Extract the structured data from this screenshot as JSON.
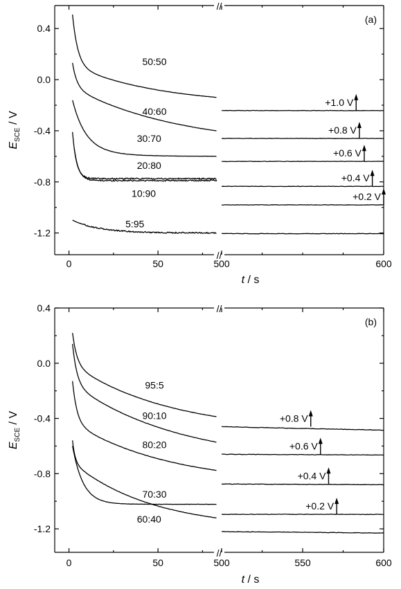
{
  "chart_data": [
    {
      "type": "line",
      "panel_label": "(a)",
      "ylabel_main": "E",
      "ylabel_sub": "SCE",
      "ylabel_unit": " / V",
      "xlabel_main": "t",
      "xlabel_unit": " / s",
      "break_mark": "//",
      "xlim_left": [
        -8,
        83
      ],
      "xlim_right": [
        500,
        600
      ],
      "ylim": [
        -1.37,
        0.58
      ],
      "yticks": [
        0.4,
        0.0,
        -0.4,
        -0.8,
        -1.2
      ],
      "ytick_labels": [
        "0.4",
        "0.0",
        "-0.4",
        "-0.8",
        "-1.2"
      ],
      "xticks_left": [
        0,
        50
      ],
      "xticks_left_labels": [
        "0",
        "50"
      ],
      "xticks_right": [
        500,
        600
      ],
      "xticks_right_labels": [
        "500",
        "600"
      ],
      "series": [
        {
          "name": "50:50",
          "label_x": 48,
          "label_y": 0.14,
          "left": {
            "t0": 2,
            "E0": 0.51,
            "Einf": -0.2,
            "A": 0.71,
            "B": 0.31,
            "tau": 3,
            "tau2": 50
          },
          "right": [
            [
              500,
              -0.242
            ],
            [
              600,
              -0.242
            ]
          ]
        },
        {
          "name": "40:60",
          "label_x": 48,
          "label_y": -0.25,
          "left": {
            "t0": 2,
            "E0": 0.13,
            "Einf": -0.52,
            "A": 0.65,
            "B": 0.46,
            "tau": 2.5,
            "tau2": 60
          },
          "right": [
            [
              500,
              -0.46
            ],
            [
              600,
              -0.46
            ]
          ]
        },
        {
          "name": "30:70",
          "label_x": 45,
          "label_y": -0.46,
          "left": {
            "t0": 2,
            "E0": -0.16,
            "Einf": -0.6,
            "A": 0.44,
            "B": 0.1,
            "tau": 7,
            "tau2": 15
          },
          "right": [
            [
              500,
              -0.64
            ],
            [
              600,
              -0.64
            ]
          ]
        },
        {
          "name": "20:80",
          "label_x": 45,
          "label_y": -0.67,
          "left": {
            "t0": 2,
            "E0": -0.41,
            "Einf": -0.775,
            "A": 0.365,
            "B": 0.0,
            "tau": 2.2,
            "tau2": 10
          },
          "right": [
            [
              500,
              -0.835
            ],
            [
              600,
              -0.835
            ]
          ]
        },
        {
          "name": "10:90",
          "label_x": 42,
          "label_y": -0.89,
          "left": {
            "t0": 3,
            "E0": -0.54,
            "Einf": -0.79,
            "A": 0.25,
            "B": 0.0,
            "tau": 2.5,
            "tau2": 10
          },
          "right": [
            [
              500,
              -0.98
            ],
            [
              600,
              -0.98
            ]
          ]
        },
        {
          "name": "5:95",
          "label_x": 37,
          "label_y": -1.13,
          "left": {
            "t0": 2,
            "E0": -1.0,
            "Einf": -1.2,
            "A": 0.1,
            "B": 0.1,
            "tau": 2,
            "tau2": 15
          },
          "right": [
            [
              500,
              -1.205
            ],
            [
              600,
              -1.205
            ]
          ]
        }
      ],
      "annotations": [
        {
          "label": "+1.0 V",
          "x": 583,
          "y": -0.242
        },
        {
          "label": "+0.8 V",
          "x": 585,
          "y": -0.46
        },
        {
          "label": "+0.6 V",
          "x": 588,
          "y": -0.64
        },
        {
          "label": "+0.4 V",
          "x": 593,
          "y": -0.835
        },
        {
          "label": "+0.2 V",
          "x": 600,
          "y": -0.98
        }
      ]
    },
    {
      "type": "line",
      "panel_label": "(b)",
      "ylabel_main": "E",
      "ylabel_sub": "SCE",
      "ylabel_unit": " / V",
      "xlabel_main": "t",
      "xlabel_unit": " / s",
      "break_mark": "//",
      "xlim_left": [
        -8,
        83
      ],
      "xlim_right": [
        500,
        600
      ],
      "ylim": [
        -1.37,
        0.4
      ],
      "yticks": [
        0.4,
        0.0,
        -0.4,
        -0.8,
        -1.2
      ],
      "ytick_labels": [
        "0.4",
        "0.0",
        "-0.4",
        "-0.8",
        "-1.2"
      ],
      "xticks_left": [
        0,
        50
      ],
      "xticks_left_labels": [
        "0",
        "50"
      ],
      "xticks_right": [
        500,
        550,
        600
      ],
      "xticks_right_labels": [
        "500",
        "550",
        "600"
      ],
      "series": [
        {
          "name": "95:5",
          "label_x": 48,
          "label_y": -0.16,
          "left": {
            "t0": 2,
            "E0": 0.22,
            "Einf": -0.5,
            "A": 0.72,
            "B": 0.49,
            "tau": 2.5,
            "tau2": 55
          },
          "right": [
            [
              500,
              -0.46
            ],
            [
              600,
              -0.485
            ]
          ]
        },
        {
          "name": "90:10",
          "label_x": 48,
          "label_y": -0.38,
          "left": {
            "t0": 2,
            "E0": 0.14,
            "Einf": -0.72,
            "A": 0.86,
            "B": 0.57,
            "tau": 2.5,
            "tau2": 60
          },
          "right": [
            [
              500,
              -0.66
            ],
            [
              600,
              -0.665
            ]
          ]
        },
        {
          "name": "80:20",
          "label_x": 48,
          "label_y": -0.59,
          "left": {
            "t0": 2,
            "E0": -0.13,
            "Einf": -0.88,
            "A": 0.75,
            "B": 0.45,
            "tau": 2.5,
            "tau2": 55
          },
          "right": [
            [
              500,
              -0.875
            ],
            [
              600,
              -0.88
            ]
          ]
        },
        {
          "name": "70:30",
          "label_x": 48,
          "label_y": -0.95,
          "left": {
            "t0": 2,
            "E0": -0.56,
            "Einf": -1.2,
            "A": 0.64,
            "B": 0.48,
            "tau": 1.5,
            "tau2": 45
          },
          "right": [
            [
              500,
              -1.095
            ],
            [
              600,
              -1.095
            ]
          ]
        },
        {
          "name": "60:40",
          "label_x": 45,
          "label_y": -1.13,
          "left": {
            "t0": 2,
            "E0": -0.6,
            "Einf": -1.022,
            "A": 0.422,
            "B": 0.0,
            "tau": 6,
            "tau2": 10
          },
          "right": [
            [
              500,
              -1.22
            ],
            [
              600,
              -1.23
            ]
          ]
        }
      ],
      "annotations": [
        {
          "label": "+0.8 V",
          "x": 555,
          "y": -0.46
        },
        {
          "label": "+0.6 V",
          "x": 561,
          "y": -0.66
        },
        {
          "label": "+0.4 V",
          "x": 566,
          "y": -0.875
        },
        {
          "label": "+0.2 V",
          "x": 571,
          "y": -1.095
        }
      ]
    }
  ]
}
